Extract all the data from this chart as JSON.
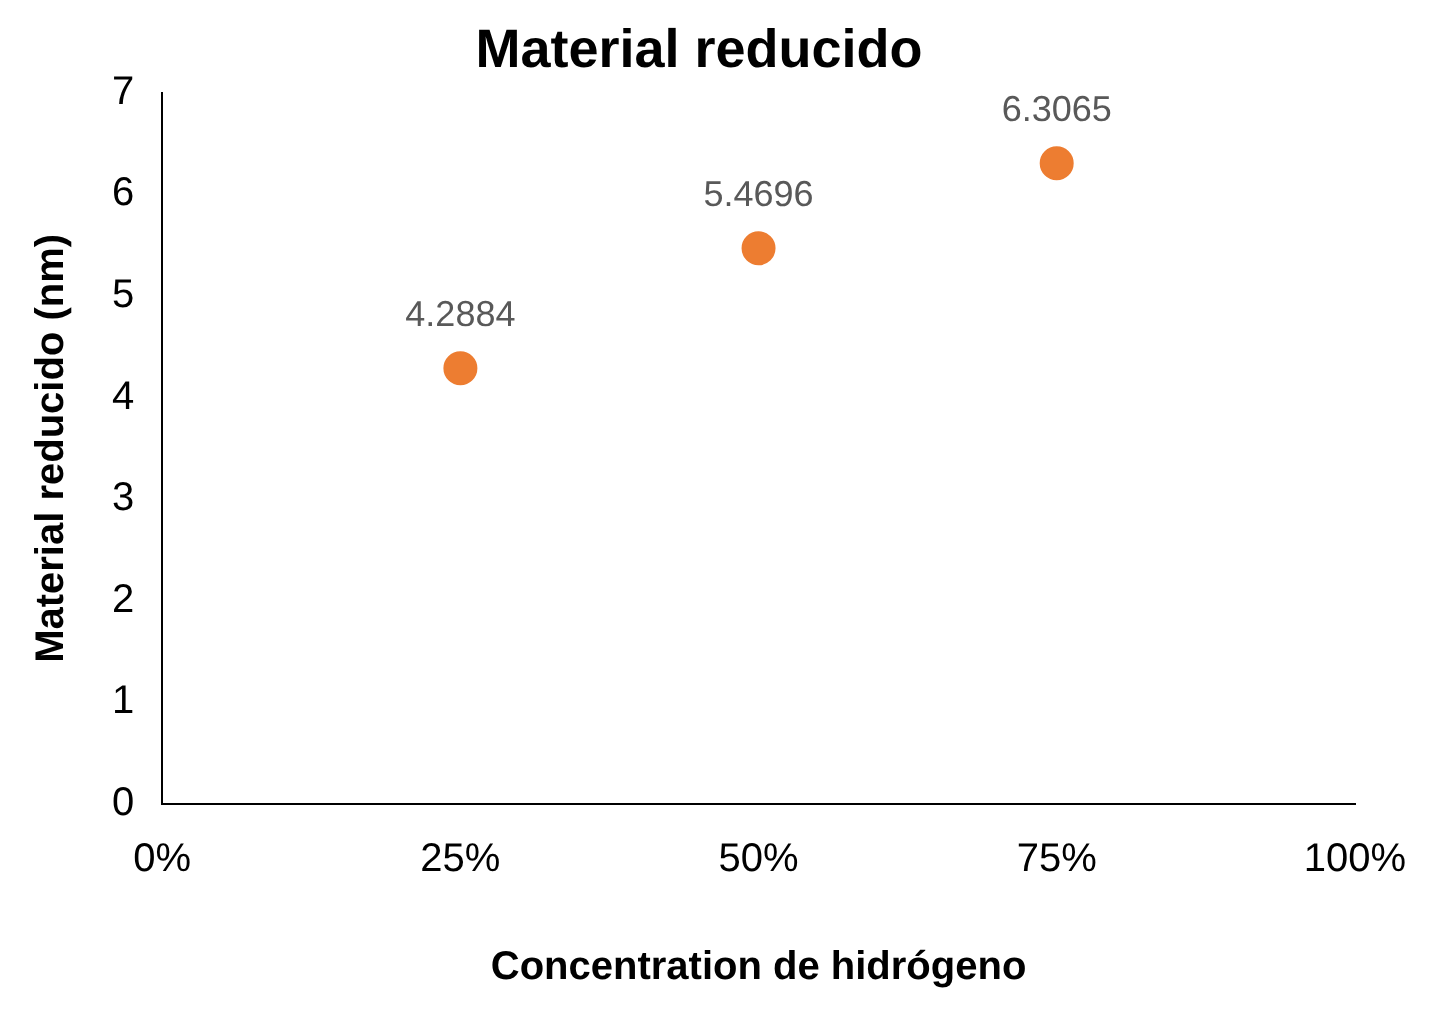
{
  "chart_data": {
    "type": "scatter",
    "title": "Material reducido",
    "xlabel": "Concentration de hidrógeno",
    "ylabel": "Material reducido (nm)",
    "x": [
      25,
      50,
      75
    ],
    "series": [
      {
        "color": "#ed7d31",
        "values": [
          4.2884,
          5.4696,
          6.3065
        ]
      }
    ],
    "xlim": [
      0,
      100
    ],
    "xticks": [
      {
        "value": 0,
        "label": "0%"
      },
      {
        "value": 25,
        "label": "25%"
      },
      {
        "value": 50,
        "label": "50%"
      },
      {
        "value": 75,
        "label": "75%"
      },
      {
        "value": 100,
        "label": "100%"
      }
    ],
    "ylim": [
      0,
      7
    ],
    "yticks": [
      0,
      1,
      2,
      3,
      4,
      5,
      6,
      7
    ],
    "grid": false,
    "legend": false,
    "marker": "circle",
    "data_labels": true
  }
}
